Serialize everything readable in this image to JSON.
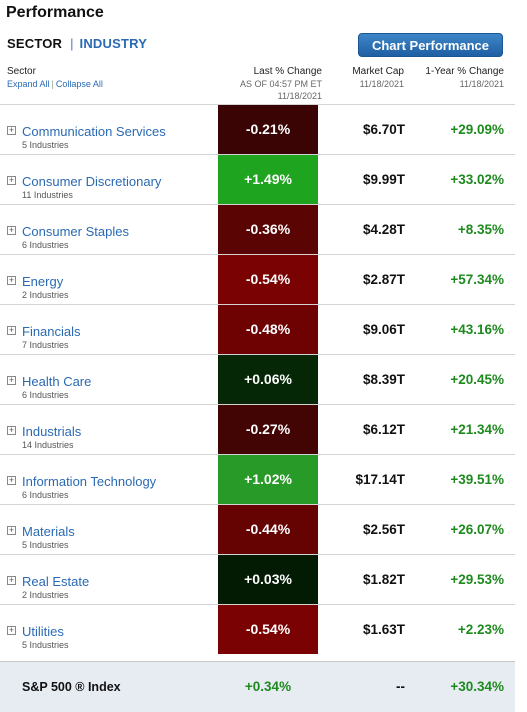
{
  "title": "Performance",
  "tabs": {
    "sector": "SECTOR",
    "separator": "|",
    "industry": "INDUSTRY"
  },
  "chart_button": "Chart Performance",
  "headers": {
    "sector": "Sector",
    "expand_all": "Expand All",
    "link_separator": "|",
    "collapse_all": "Collapse All",
    "last_change": "Last % Change",
    "last_change_sub1": "AS OF 04:57 PM ET",
    "last_change_sub2": "11/18/2021",
    "market_cap": "Market Cap",
    "market_cap_sub": "11/18/2021",
    "year_change": "1-Year % Change",
    "year_change_sub": "11/18/2021"
  },
  "expand_symbol": "+",
  "sectors": [
    {
      "name": "Communication Services",
      "count": "5 Industries",
      "change": "-0.21%",
      "market_cap": "$6.70T",
      "year_change": "+29.09%",
      "color": "#3a0404"
    },
    {
      "name": "Consumer Discretionary",
      "count": "11 Industries",
      "change": "+1.49%",
      "market_cap": "$9.99T",
      "year_change": "+33.02%",
      "color": "#1fa41f"
    },
    {
      "name": "Consumer Staples",
      "count": "6 Industries",
      "change": "-0.36%",
      "market_cap": "$4.28T",
      "year_change": "+8.35%",
      "color": "#5a0404"
    },
    {
      "name": "Energy",
      "count": "2 Industries",
      "change": "-0.54%",
      "market_cap": "$2.87T",
      "year_change": "+57.34%",
      "color": "#7a0202"
    },
    {
      "name": "Financials",
      "count": "7 Industries",
      "change": "-0.48%",
      "market_cap": "$9.06T",
      "year_change": "+43.16%",
      "color": "#6e0202"
    },
    {
      "name": "Health Care",
      "count": "6 Industries",
      "change": "+0.06%",
      "market_cap": "$8.39T",
      "year_change": "+20.45%",
      "color": "#052705"
    },
    {
      "name": "Industrials",
      "count": "14 Industries",
      "change": "-0.27%",
      "market_cap": "$6.12T",
      "year_change": "+21.34%",
      "color": "#430404"
    },
    {
      "name": "Information Technology",
      "count": "6 Industries",
      "change": "+1.02%",
      "market_cap": "$17.14T",
      "year_change": "+39.51%",
      "color": "#279a27"
    },
    {
      "name": "Materials",
      "count": "5 Industries",
      "change": "-0.44%",
      "market_cap": "$2.56T",
      "year_change": "+26.07%",
      "color": "#650202"
    },
    {
      "name": "Real Estate",
      "count": "2 Industries",
      "change": "+0.03%",
      "market_cap": "$1.82T",
      "year_change": "+29.53%",
      "color": "#031a03"
    },
    {
      "name": "Utilities",
      "count": "5 Industries",
      "change": "-0.54%",
      "market_cap": "$1.63T",
      "year_change": "+2.23%",
      "color": "#7a0202"
    }
  ],
  "index": {
    "name": "S&P 500 ® Index",
    "change": "+0.34%",
    "market_cap": "--",
    "year_change": "+30.34%"
  }
}
